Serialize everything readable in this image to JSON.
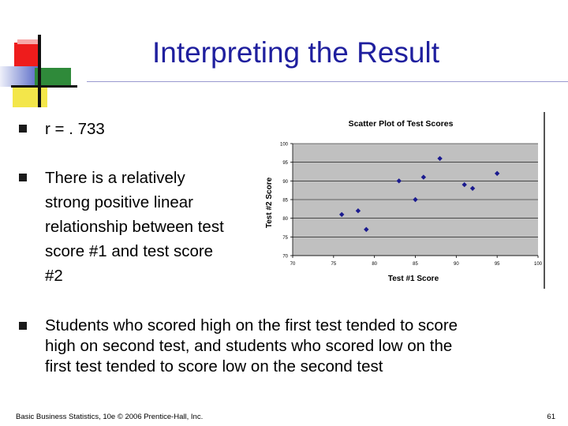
{
  "slide": {
    "title": "Interpreting the Result",
    "bullets": [
      "r = . 733",
      "There is a relatively strong positive linear relationship between test score #1 and test score #2",
      "Students who scored high on the first test tended to score high on second test, and students who scored low on the first test tended to score low on the second test"
    ],
    "footer": "Basic Business Statistics, 10e © 2006 Prentice-Hall, Inc.",
    "page_number": "61"
  },
  "colors": {
    "title": "#1f1f9e",
    "plot_background": "#c0c0c0",
    "marker": "#1b1b8f"
  },
  "chart_data": {
    "type": "scatter",
    "title": "Scatter Plot of Test Scores",
    "xlabel": "Test #1 Score",
    "ylabel": "Test #2 Score",
    "xlim": [
      70,
      100
    ],
    "ylim": [
      70,
      100
    ],
    "x_ticks": [
      "70",
      "75",
      "80",
      "85",
      "90",
      "95",
      "100"
    ],
    "y_ticks": [
      "70",
      "75",
      "80",
      "85",
      "90",
      "95",
      "100"
    ],
    "grid": "horizontal",
    "points": [
      {
        "x": 76,
        "y": 81
      },
      {
        "x": 78,
        "y": 82
      },
      {
        "x": 79,
        "y": 77
      },
      {
        "x": 83,
        "y": 90
      },
      {
        "x": 85,
        "y": 85
      },
      {
        "x": 86,
        "y": 91
      },
      {
        "x": 88,
        "y": 96
      },
      {
        "x": 91,
        "y": 89
      },
      {
        "x": 92,
        "y": 88
      },
      {
        "x": 95,
        "y": 92
      }
    ]
  }
}
